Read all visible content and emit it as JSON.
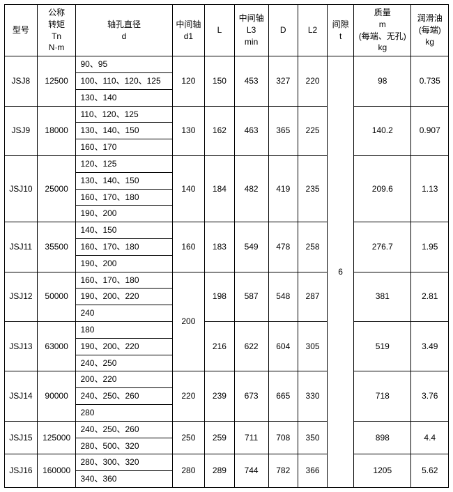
{
  "headers": {
    "model": "型号",
    "torque": "公称\n转矩\nTn\nN·m",
    "shaft": "轴孔直径\nd",
    "d1": "中间轴\nd1",
    "L": "L",
    "L3": "中间轴\nL3\nmin",
    "D": "D",
    "L2": "L2",
    "t": "间隙\nt",
    "mass": "质量\nm\n(每端、无孔)\nkg",
    "lube": "润滑油\n(每端)\nkg"
  },
  "clearance_t": "6",
  "rows": [
    {
      "model": "JSJ8",
      "torque": "12500",
      "shaft": [
        "90、95",
        "100、110、120、125",
        "130、140"
      ],
      "d1": "120",
      "L": "150",
      "L3": "453",
      "D": "327",
      "L2": "220",
      "mass": "98",
      "lube": "0.735",
      "d1_span": 1
    },
    {
      "model": "JSJ9",
      "torque": "18000",
      "shaft": [
        "110、120、125",
        "130、140、150",
        "160、170"
      ],
      "d1": "130",
      "L": "162",
      "L3": "463",
      "D": "365",
      "L2": "225",
      "mass": "140.2",
      "lube": "0.907",
      "d1_span": 1
    },
    {
      "model": "JSJ10",
      "torque": "25000",
      "shaft": [
        "120、125",
        "130、140、150",
        "160、170、180",
        "190、200"
      ],
      "d1": "140",
      "L": "184",
      "L3": "482",
      "D": "419",
      "L2": "235",
      "mass": "209.6",
      "lube": "1.13",
      "d1_span": 1
    },
    {
      "model": "JSJ11",
      "torque": "35500",
      "shaft": [
        "140、150",
        "160、170、180",
        "190、200"
      ],
      "d1": "160",
      "L": "183",
      "L3": "549",
      "D": "478",
      "L2": "258",
      "mass": "276.7",
      "lube": "1.95",
      "d1_span": 1
    },
    {
      "model": "JSJ12",
      "torque": "50000",
      "shaft": [
        "160、170、180",
        "190、200、220",
        "240"
      ],
      "d1": "200",
      "L": "198",
      "L3": "587",
      "D": "548",
      "L2": "287",
      "mass": "381",
      "lube": "2.81",
      "d1_span": 2
    },
    {
      "model": "JSJ13",
      "torque": "63000",
      "shaft": [
        "180",
        "190、200、220",
        "240、250"
      ],
      "d1": "",
      "L": "216",
      "L3": "622",
      "D": "604",
      "L2": "305",
      "mass": "519",
      "lube": "3.49",
      "d1_span": 0
    },
    {
      "model": "JSJ14",
      "torque": "90000",
      "shaft": [
        "200、220",
        "240、250、260",
        "280"
      ],
      "d1": "220",
      "L": "239",
      "L3": "673",
      "D": "665",
      "L2": "330",
      "mass": "718",
      "lube": "3.76",
      "d1_span": 1
    },
    {
      "model": "JSJ15",
      "torque": "125000",
      "shaft": [
        "240、250、260",
        "280、500、320"
      ],
      "d1": "250",
      "L": "259",
      "L3": "711",
      "D": "708",
      "L2": "350",
      "mass": "898",
      "lube": "4.4",
      "d1_span": 1
    },
    {
      "model": "JSJ16",
      "torque": "160000",
      "shaft": [
        "280、300、320",
        "340、360"
      ],
      "d1": "280",
      "L": "289",
      "L3": "744",
      "D": "782",
      "L2": "366",
      "mass": "1205",
      "lube": "5.62",
      "d1_span": 1
    }
  ]
}
